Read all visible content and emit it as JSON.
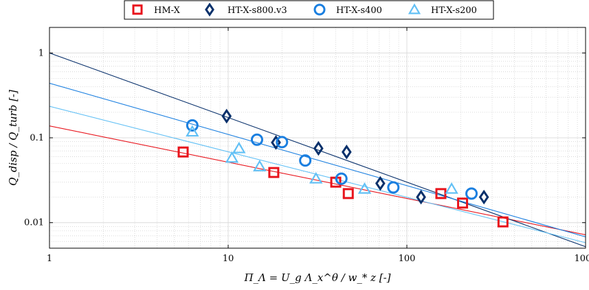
{
  "chart_data": {
    "type": "scatter",
    "xscale": "log",
    "yscale": "log",
    "xlim": [
      1,
      1000
    ],
    "ylim": [
      0.005,
      2
    ],
    "xlabel": "Π_Λ = U_g Λ_x^θ / w_* z [-]",
    "ylabel": "Q_disp / Q_turb [-]",
    "x_ticks": [
      1,
      10,
      100,
      1000
    ],
    "x_tick_labels": [
      "1",
      "10",
      "100",
      "1000"
    ],
    "y_ticks": [
      0.01,
      0.1,
      1
    ],
    "y_tick_labels": [
      "0.01",
      "0.1",
      "1"
    ],
    "grid": true,
    "legend_position": "top",
    "series": [
      {
        "name": "HM-X",
        "marker": "square",
        "color": "#e8131b",
        "points": [
          [
            5.6,
            0.068
          ],
          [
            18,
            0.039
          ],
          [
            40,
            0.03
          ],
          [
            47,
            0.022
          ],
          [
            155,
            0.022
          ],
          [
            205,
            0.017
          ],
          [
            345,
            0.0102
          ]
        ],
        "fit": [
          [
            1,
            0.138
          ],
          [
            1000,
            0.0072
          ]
        ]
      },
      {
        "name": "HT-X-s800.v3",
        "marker": "diamond",
        "color": "#08306b",
        "points": [
          [
            9.8,
            0.18
          ],
          [
            18.5,
            0.088
          ],
          [
            32,
            0.075
          ],
          [
            46,
            0.068
          ],
          [
            71,
            0.029
          ],
          [
            120,
            0.02
          ],
          [
            270,
            0.02
          ]
        ],
        "fit": [
          [
            1,
            1.0
          ],
          [
            1000,
            0.0052
          ]
        ]
      },
      {
        "name": "HT-X-s400",
        "marker": "circle",
        "color": "#1a7fe0",
        "points": [
          [
            6.3,
            0.14
          ],
          [
            14.5,
            0.095
          ],
          [
            20,
            0.089
          ],
          [
            27,
            0.054
          ],
          [
            43,
            0.033
          ],
          [
            84,
            0.026
          ],
          [
            230,
            0.022
          ]
        ],
        "fit": [
          [
            1,
            0.44
          ],
          [
            1000,
            0.0068
          ]
        ]
      },
      {
        "name": "HT-X-s200",
        "marker": "triangle",
        "color": "#62c0f5",
        "points": [
          [
            6.3,
            0.118
          ],
          [
            10.5,
            0.058
          ],
          [
            11.5,
            0.075
          ],
          [
            15,
            0.046
          ],
          [
            31,
            0.033
          ],
          [
            58,
            0.025
          ],
          [
            178,
            0.025
          ]
        ],
        "fit": [
          [
            1,
            0.235
          ],
          [
            1000,
            0.0058
          ]
        ]
      }
    ]
  }
}
